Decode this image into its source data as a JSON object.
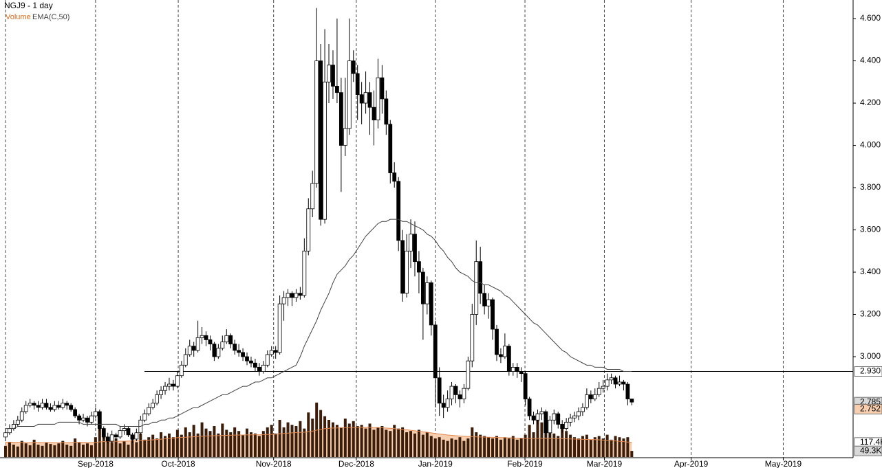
{
  "chart_data": {
    "type": "candlestick",
    "title": "NGJ9 - 1 day",
    "grid": true,
    "xlim": [
      -1.34,
      207.06
    ],
    "xticks": [
      {
        "value": 22,
        "label": "Sep-2018"
      },
      {
        "value": 42.2,
        "label": "Oct-2018"
      },
      {
        "value": 65.5,
        "label": "Nov-2018"
      },
      {
        "value": 85.7,
        "label": "Dec-2018"
      },
      {
        "value": 105,
        "label": "Jan-2019"
      },
      {
        "value": 126.9,
        "label": "Feb-2019"
      },
      {
        "value": 146.3,
        "label": "Mar-2019"
      },
      {
        "value": 167.5,
        "label": "Apr-2019"
      },
      {
        "value": 190,
        "label": "May-2019"
      }
    ],
    "ylim": [
      2.522,
      4.688
    ],
    "yticks": [
      {
        "value": 3.0,
        "label": "3.000"
      },
      {
        "value": 3.2,
        "label": "3.200"
      },
      {
        "value": 3.4,
        "label": "3.400"
      },
      {
        "value": 3.6,
        "label": "3.600"
      },
      {
        "value": 3.8,
        "label": "3.800"
      },
      {
        "value": 4.0,
        "label": "4.000"
      },
      {
        "value": 4.2,
        "label": "4.200"
      },
      {
        "value": 4.4,
        "label": "4.400"
      },
      {
        "value": 4.6,
        "label": "4.600"
      }
    ],
    "up_color": "#ffffff",
    "down_color": "#000000",
    "candles": [
      [
        2.62,
        2.66,
        2.6,
        2.64
      ],
      [
        2.64,
        2.68,
        2.63,
        2.66
      ],
      [
        2.66,
        2.7,
        2.65,
        2.68
      ],
      [
        2.68,
        2.72,
        2.67,
        2.7
      ],
      [
        2.7,
        2.76,
        2.69,
        2.74
      ],
      [
        2.74,
        2.79,
        2.73,
        2.77
      ],
      [
        2.77,
        2.8,
        2.76,
        2.78
      ],
      [
        2.78,
        2.79,
        2.75,
        2.77
      ],
      [
        2.77,
        2.79,
        2.74,
        2.76
      ],
      [
        2.76,
        2.8,
        2.75,
        2.78
      ],
      [
        2.78,
        2.8,
        2.75,
        2.76
      ],
      [
        2.76,
        2.78,
        2.74,
        2.75
      ],
      [
        2.75,
        2.79,
        2.74,
        2.77
      ],
      [
        2.77,
        2.79,
        2.75,
        2.76
      ],
      [
        2.76,
        2.8,
        2.75,
        2.78
      ],
      [
        2.78,
        2.79,
        2.75,
        2.77
      ],
      [
        2.77,
        2.78,
        2.74,
        2.75
      ],
      [
        2.75,
        2.76,
        2.71,
        2.72
      ],
      [
        2.72,
        2.73,
        2.68,
        2.7
      ],
      [
        2.7,
        2.73,
        2.69,
        2.71
      ],
      [
        2.71,
        2.72,
        2.67,
        2.69
      ],
      [
        2.69,
        2.74,
        2.68,
        2.72
      ],
      [
        2.72,
        2.76,
        2.71,
        2.74
      ],
      [
        2.74,
        2.75,
        2.65,
        2.66
      ],
      [
        2.66,
        2.67,
        2.61,
        2.62
      ],
      [
        2.62,
        2.64,
        2.59,
        2.6
      ],
      [
        2.6,
        2.65,
        2.59,
        2.63
      ],
      [
        2.63,
        2.64,
        2.6,
        2.62
      ],
      [
        2.62,
        2.67,
        2.61,
        2.65
      ],
      [
        2.65,
        2.68,
        2.63,
        2.66
      ],
      [
        2.66,
        2.67,
        2.62,
        2.63
      ],
      [
        2.63,
        2.64,
        2.59,
        2.61
      ],
      [
        2.61,
        2.66,
        2.6,
        2.64
      ],
      [
        2.64,
        2.72,
        2.63,
        2.7
      ],
      [
        2.7,
        2.75,
        2.69,
        2.73
      ],
      [
        2.73,
        2.78,
        2.72,
        2.76
      ],
      [
        2.76,
        2.8,
        2.75,
        2.78
      ],
      [
        2.78,
        2.84,
        2.77,
        2.82
      ],
      [
        2.82,
        2.86,
        2.8,
        2.84
      ],
      [
        2.84,
        2.88,
        2.82,
        2.86
      ],
      [
        2.86,
        2.9,
        2.84,
        2.87
      ],
      [
        2.87,
        2.89,
        2.84,
        2.86
      ],
      [
        2.86,
        2.93,
        2.85,
        2.91
      ],
      [
        2.91,
        2.98,
        2.9,
        2.96
      ],
      [
        2.96,
        3.04,
        2.95,
        3.01
      ],
      [
        3.01,
        3.08,
        3.0,
        3.05
      ],
      [
        3.05,
        3.07,
        3.0,
        3.03
      ],
      [
        3.03,
        3.17,
        3.02,
        3.09
      ],
      [
        3.09,
        3.14,
        3.06,
        3.1
      ],
      [
        3.1,
        3.12,
        3.05,
        3.08
      ],
      [
        3.08,
        3.1,
        3.03,
        3.06
      ],
      [
        3.06,
        3.07,
        2.98,
        3.0
      ],
      [
        3.0,
        3.06,
        2.99,
        3.04
      ],
      [
        3.04,
        3.1,
        3.03,
        3.07
      ],
      [
        3.07,
        3.13,
        3.06,
        3.1
      ],
      [
        3.1,
        3.11,
        3.04,
        3.06
      ],
      [
        3.06,
        3.08,
        3.01,
        3.03
      ],
      [
        3.03,
        3.06,
        3.0,
        3.02
      ],
      [
        3.02,
        3.04,
        2.98,
        3.0
      ],
      [
        3.0,
        3.02,
        2.96,
        2.98
      ],
      [
        2.98,
        3.0,
        2.95,
        2.97
      ],
      [
        2.97,
        2.99,
        2.93,
        2.95
      ],
      [
        2.95,
        2.97,
        2.91,
        2.93
      ],
      [
        2.93,
        2.98,
        2.92,
        2.96
      ],
      [
        2.96,
        3.03,
        2.95,
        3.01
      ],
      [
        3.01,
        3.05,
        3.0,
        3.03
      ],
      [
        3.03,
        3.05,
        2.99,
        3.02
      ],
      [
        3.02,
        3.29,
        3.01,
        3.25
      ],
      [
        3.25,
        3.31,
        3.17,
        3.28
      ],
      [
        3.28,
        3.32,
        3.24,
        3.3
      ],
      [
        3.3,
        3.31,
        3.24,
        3.28
      ],
      [
        3.28,
        3.32,
        3.26,
        3.3
      ],
      [
        3.3,
        3.33,
        3.27,
        3.29
      ],
      [
        3.29,
        3.56,
        3.28,
        3.5
      ],
      [
        3.5,
        3.75,
        3.48,
        3.7
      ],
      [
        3.7,
        3.88,
        3.66,
        3.82
      ],
      [
        3.82,
        4.65,
        3.8,
        4.4
      ],
      [
        4.4,
        4.48,
        3.62,
        3.65
      ],
      [
        3.65,
        4.55,
        3.63,
        4.3
      ],
      [
        4.3,
        4.48,
        4.2,
        4.38
      ],
      [
        4.38,
        4.45,
        4.22,
        4.28
      ],
      [
        4.28,
        4.6,
        4.2,
        4.25
      ],
      [
        4.25,
        4.32,
        3.78,
        4.0
      ],
      [
        4.0,
        4.32,
        3.95,
        4.08
      ],
      [
        4.08,
        4.6,
        4.05,
        4.4
      ],
      [
        4.4,
        4.45,
        4.3,
        4.34
      ],
      [
        4.34,
        4.38,
        4.12,
        4.24
      ],
      [
        4.24,
        4.3,
        4.1,
        4.2
      ],
      [
        4.2,
        4.35,
        4.15,
        4.25
      ],
      [
        4.25,
        4.3,
        4.05,
        4.18
      ],
      [
        4.18,
        4.26,
        4.0,
        4.12
      ],
      [
        4.12,
        4.41,
        4.08,
        4.32
      ],
      [
        4.32,
        4.38,
        4.15,
        4.22
      ],
      [
        4.22,
        4.26,
        4.05,
        4.1
      ],
      [
        4.1,
        4.12,
        3.82,
        3.87
      ],
      [
        3.87,
        3.92,
        3.8,
        3.83
      ],
      [
        3.83,
        3.85,
        3.5,
        3.55
      ],
      [
        3.55,
        3.6,
        3.26,
        3.3
      ],
      [
        3.3,
        3.58,
        3.28,
        3.5
      ],
      [
        3.5,
        3.65,
        3.42,
        3.58
      ],
      [
        3.58,
        3.64,
        3.38,
        3.45
      ],
      [
        3.45,
        3.5,
        3.3,
        3.4
      ],
      [
        3.4,
        3.42,
        3.08,
        3.25
      ],
      [
        3.25,
        3.38,
        3.2,
        3.35
      ],
      [
        3.35,
        3.36,
        3.1,
        3.15
      ],
      [
        3.15,
        3.17,
        2.76,
        2.9
      ],
      [
        2.9,
        2.95,
        2.72,
        2.78
      ],
      [
        2.78,
        2.82,
        2.71,
        2.76
      ],
      [
        2.76,
        2.84,
        2.74,
        2.8
      ],
      [
        2.8,
        2.88,
        2.77,
        2.86
      ],
      [
        2.86,
        2.87,
        2.78,
        2.82
      ],
      [
        2.82,
        2.84,
        2.76,
        2.8
      ],
      [
        2.8,
        2.87,
        2.78,
        2.85
      ],
      [
        2.85,
        3.0,
        2.84,
        2.98
      ],
      [
        2.98,
        3.25,
        2.95,
        3.2
      ],
      [
        3.2,
        3.55,
        3.15,
        3.45
      ],
      [
        3.45,
        3.52,
        3.25,
        3.3
      ],
      [
        3.3,
        3.34,
        3.2,
        3.24
      ],
      [
        3.24,
        3.3,
        3.18,
        3.27
      ],
      [
        3.27,
        3.28,
        3.08,
        3.13
      ],
      [
        3.13,
        3.15,
        2.98,
        3.01
      ],
      [
        3.01,
        3.04,
        2.97,
        3.0
      ],
      [
        3.0,
        3.11,
        2.99,
        3.05
      ],
      [
        3.05,
        3.06,
        2.91,
        2.93
      ],
      [
        2.93,
        2.97,
        2.91,
        2.95
      ],
      [
        2.95,
        2.97,
        2.9,
        2.93
      ],
      [
        2.93,
        2.95,
        2.88,
        2.92
      ],
      [
        2.92,
        2.93,
        2.77,
        2.8
      ],
      [
        2.8,
        2.81,
        2.7,
        2.72
      ],
      [
        2.72,
        2.74,
        2.68,
        2.7
      ],
      [
        2.7,
        2.75,
        2.68,
        2.73
      ],
      [
        2.73,
        2.76,
        2.7,
        2.74
      ],
      [
        2.74,
        2.75,
        2.62,
        2.64
      ],
      [
        2.64,
        2.72,
        2.62,
        2.7
      ],
      [
        2.7,
        2.75,
        2.68,
        2.73
      ],
      [
        2.73,
        2.74,
        2.66,
        2.68
      ],
      [
        2.68,
        2.7,
        2.64,
        2.66
      ],
      [
        2.66,
        2.71,
        2.65,
        2.69
      ],
      [
        2.69,
        2.73,
        2.67,
        2.71
      ],
      [
        2.71,
        2.74,
        2.69,
        2.72
      ],
      [
        2.72,
        2.76,
        2.7,
        2.74
      ],
      [
        2.74,
        2.78,
        2.72,
        2.76
      ],
      [
        2.76,
        2.85,
        2.75,
        2.82
      ],
      [
        2.82,
        2.84,
        2.78,
        2.8
      ],
      [
        2.8,
        2.85,
        2.79,
        2.82
      ],
      [
        2.82,
        2.88,
        2.81,
        2.85
      ],
      [
        2.85,
        2.89,
        2.83,
        2.86
      ],
      [
        2.86,
        2.92,
        2.84,
        2.89
      ],
      [
        2.89,
        2.92,
        2.87,
        2.9
      ],
      [
        2.9,
        2.91,
        2.85,
        2.87
      ],
      [
        2.87,
        2.91,
        2.86,
        2.88
      ],
      [
        2.88,
        2.89,
        2.84,
        2.87
      ],
      [
        2.87,
        2.88,
        2.77,
        2.8
      ],
      [
        2.8,
        2.8,
        2.77,
        2.785
      ]
    ],
    "ema": {
      "name": "EMA(C,50)",
      "color": "#404040",
      "values": [
        2.66,
        2.66,
        2.66,
        2.67,
        2.67,
        2.67,
        2.67,
        2.67,
        2.68,
        2.68,
        2.68,
        2.68,
        2.68,
        2.69,
        2.69,
        2.69,
        2.69,
        2.69,
        2.69,
        2.68,
        2.68,
        2.68,
        2.68,
        2.68,
        2.68,
        2.68,
        2.68,
        2.68,
        2.67,
        2.67,
        2.67,
        2.67,
        2.67,
        2.67,
        2.68,
        2.68,
        2.69,
        2.69,
        2.7,
        2.7,
        2.71,
        2.71,
        2.72,
        2.73,
        2.74,
        2.75,
        2.76,
        2.76,
        2.77,
        2.78,
        2.79,
        2.8,
        2.81,
        2.82,
        2.82,
        2.83,
        2.84,
        2.85,
        2.86,
        2.86,
        2.87,
        2.88,
        2.88,
        2.89,
        2.9,
        2.9,
        2.91,
        2.92,
        2.93,
        2.94,
        2.95,
        2.96,
        3.0,
        3.05,
        3.09,
        3.13,
        3.17,
        3.22,
        3.26,
        3.3,
        3.35,
        3.39,
        3.41,
        3.43,
        3.46,
        3.48,
        3.51,
        3.54,
        3.57,
        3.59,
        3.61,
        3.63,
        3.64,
        3.64,
        3.65,
        3.65,
        3.65,
        3.64,
        3.64,
        3.63,
        3.62,
        3.61,
        3.6,
        3.58,
        3.57,
        3.55,
        3.52,
        3.5,
        3.47,
        3.45,
        3.42,
        3.4,
        3.39,
        3.38,
        3.36,
        3.35,
        3.35,
        3.34,
        3.34,
        3.33,
        3.32,
        3.31,
        3.29,
        3.28,
        3.26,
        3.24,
        3.22,
        3.2,
        3.18,
        3.16,
        3.15,
        3.13,
        3.11,
        3.09,
        3.07,
        3.05,
        3.03,
        3.02,
        3.0,
        2.99,
        2.98,
        2.97,
        2.96,
        2.96,
        2.95,
        2.95,
        2.95,
        2.94,
        2.94,
        2.94,
        2.94,
        2.93,
        2.93,
        2.93
      ]
    },
    "volume": {
      "name": "Volume",
      "color": "#3b1d0c",
      "ema_color": "#e0874e",
      "ema_fill": "#f7cfb0",
      "vlim": [
        0,
        500
      ],
      "values": [
        90,
        120,
        100,
        85,
        130,
        110,
        95,
        140,
        100,
        90,
        120,
        105,
        95,
        110,
        130,
        100,
        90,
        150,
        120,
        100,
        110,
        95,
        160,
        260,
        180,
        140,
        120,
        150,
        110,
        130,
        100,
        170,
        120,
        190,
        140,
        160,
        180,
        150,
        200,
        170,
        190,
        160,
        220,
        180,
        240,
        200,
        260,
        190,
        280,
        230,
        210,
        250,
        190,
        270,
        220,
        200,
        240,
        210,
        180,
        230,
        200,
        190,
        170,
        210,
        240,
        260,
        190,
        300,
        240,
        280,
        260,
        250,
        290,
        230,
        360,
        310,
        440,
        380,
        330,
        300,
        280,
        260,
        240,
        310,
        270,
        290,
        250,
        260,
        230,
        270,
        220,
        240,
        250,
        220,
        210,
        260,
        230,
        240,
        200,
        210,
        190,
        220,
        180,
        200,
        170,
        150,
        160,
        140,
        130,
        150,
        140,
        160,
        130,
        150,
        240,
        200,
        180,
        170,
        160,
        150,
        170,
        140,
        160,
        150,
        170,
        140,
        150,
        180,
        260,
        200,
        340,
        280,
        220,
        260,
        190,
        170,
        240,
        210,
        180,
        160,
        150,
        170,
        180,
        140,
        160,
        170,
        150,
        180,
        140,
        170,
        160,
        150,
        160,
        49.3
      ],
      "ema_values": [
        120,
        120,
        119,
        118,
        118,
        117,
        117,
        118,
        118,
        117,
        117,
        117,
        116,
        116,
        117,
        117,
        117,
        118,
        118,
        118,
        118,
        117,
        118,
        122,
        124,
        125,
        126,
        127,
        128,
        128,
        129,
        130,
        132,
        133,
        135,
        137,
        139,
        141,
        144,
        147,
        150,
        153,
        156,
        158,
        160,
        162,
        164,
        166,
        168,
        170,
        171,
        172,
        173,
        174,
        175,
        176,
        177,
        178,
        178,
        179,
        179,
        180,
        180,
        181,
        182,
        183,
        184,
        188,
        190,
        193,
        195,
        197,
        199,
        200,
        205,
        209,
        217,
        224,
        229,
        232,
        234,
        235,
        236,
        238,
        239,
        240,
        241,
        242,
        241,
        240,
        239,
        238,
        236,
        234,
        232,
        229,
        226,
        223,
        220,
        216,
        212,
        208,
        204,
        200,
        195,
        190,
        186,
        182,
        178,
        175,
        172,
        170,
        168,
        166,
        164,
        163,
        162,
        161,
        160,
        159,
        158,
        157,
        156,
        155,
        154,
        153,
        152,
        152,
        151,
        151,
        152,
        152,
        151,
        150,
        150,
        149,
        148,
        147,
        146,
        145,
        144,
        143,
        142,
        141,
        140,
        139,
        137,
        135,
        133,
        130,
        127,
        124,
        121,
        117.4
      ]
    },
    "hline": {
      "value": 2.93,
      "label": "2.930"
    },
    "price_markers": [
      {
        "value": 2.785,
        "label": "2.785",
        "color": "#d9d9d9"
      },
      {
        "value": 2.752,
        "label": "2.752",
        "color": "#f7cfb0"
      }
    ],
    "volume_markers": [
      {
        "value": 117.4,
        "label": "117.4K",
        "color": "#ffffff"
      },
      {
        "value": 49.3,
        "label": "49.3K",
        "color": "#d9d9d9"
      }
    ]
  }
}
